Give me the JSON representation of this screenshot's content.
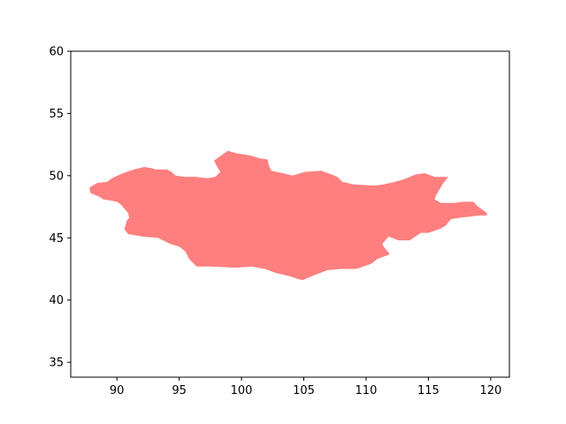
{
  "chart_data": {
    "type": "area",
    "title": "",
    "xlabel": "",
    "ylabel": "",
    "xlim": [
      86.3,
      121.5
    ],
    "ylim": [
      33.8,
      60.0
    ],
    "grid": false,
    "xticks": [
      90,
      95,
      100,
      105,
      110,
      115,
      120
    ],
    "yticks": [
      35,
      40,
      45,
      50,
      55,
      60
    ],
    "xtick_labels": [
      "90",
      "95",
      "100",
      "105",
      "110",
      "115",
      "120"
    ],
    "ytick_labels": [
      "35",
      "40",
      "45",
      "50",
      "55",
      "60"
    ],
    "series": [
      {
        "fill_color": "#ff7f7f",
        "points": [
          [
            87.9,
            49.1
          ],
          [
            88.4,
            49.4
          ],
          [
            89.2,
            49.5
          ],
          [
            89.6,
            49.8
          ],
          [
            90.5,
            50.2
          ],
          [
            91.4,
            50.5
          ],
          [
            92.2,
            50.7
          ],
          [
            92.8,
            50.6
          ],
          [
            93.1,
            50.5
          ],
          [
            94.0,
            50.5
          ],
          [
            94.4,
            50.3
          ],
          [
            94.7,
            50.0
          ],
          [
            95.5,
            49.9
          ],
          [
            96.3,
            49.9
          ],
          [
            97.3,
            49.8
          ],
          [
            97.9,
            49.9
          ],
          [
            98.3,
            50.3
          ],
          [
            98.0,
            50.8
          ],
          [
            97.8,
            51.2
          ],
          [
            98.2,
            51.5
          ],
          [
            98.9,
            52.0
          ],
          [
            99.6,
            51.8
          ],
          [
            100.8,
            51.6
          ],
          [
            101.4,
            51.4
          ],
          [
            102.1,
            51.3
          ],
          [
            102.2,
            50.8
          ],
          [
            102.4,
            50.4
          ],
          [
            103.3,
            50.2
          ],
          [
            104.1,
            50.0
          ],
          [
            105.1,
            50.3
          ],
          [
            106.4,
            50.4
          ],
          [
            107.2,
            50.1
          ],
          [
            107.7,
            49.9
          ],
          [
            108.1,
            49.5
          ],
          [
            109.0,
            49.3
          ],
          [
            110.7,
            49.2
          ],
          [
            111.4,
            49.3
          ],
          [
            112.3,
            49.5
          ],
          [
            113.0,
            49.7
          ],
          [
            114.0,
            50.1
          ],
          [
            114.7,
            50.2
          ],
          [
            115.5,
            49.9
          ],
          [
            116.6,
            49.9
          ],
          [
            116.2,
            49.4
          ],
          [
            115.6,
            48.4
          ],
          [
            115.5,
            48.1
          ],
          [
            116.0,
            47.8
          ],
          [
            117.0,
            47.8
          ],
          [
            117.8,
            47.9
          ],
          [
            118.6,
            47.9
          ],
          [
            119.0,
            47.5
          ],
          [
            119.7,
            47.0
          ],
          [
            119.7,
            46.8
          ],
          [
            119.1,
            46.8
          ],
          [
            118.3,
            46.7
          ],
          [
            117.4,
            46.6
          ],
          [
            116.8,
            46.5
          ],
          [
            116.4,
            46.0
          ],
          [
            115.9,
            45.7
          ],
          [
            115.0,
            45.4
          ],
          [
            114.4,
            45.4
          ],
          [
            113.5,
            44.8
          ],
          [
            112.6,
            44.8
          ],
          [
            111.8,
            45.1
          ],
          [
            111.3,
            44.5
          ],
          [
            111.4,
            44.3
          ],
          [
            111.9,
            43.7
          ],
          [
            111.7,
            43.6
          ],
          [
            110.9,
            43.3
          ],
          [
            110.4,
            42.9
          ],
          [
            109.2,
            42.5
          ],
          [
            107.9,
            42.5
          ],
          [
            106.9,
            42.4
          ],
          [
            105.6,
            41.9
          ],
          [
            104.9,
            41.6
          ],
          [
            104.5,
            41.7
          ],
          [
            103.9,
            41.9
          ],
          [
            102.7,
            42.2
          ],
          [
            101.9,
            42.5
          ],
          [
            100.8,
            42.7
          ],
          [
            99.5,
            42.6
          ],
          [
            97.5,
            42.7
          ],
          [
            96.4,
            42.7
          ],
          [
            95.8,
            43.3
          ],
          [
            95.5,
            43.9
          ],
          [
            95.0,
            44.3
          ],
          [
            94.3,
            44.5
          ],
          [
            93.3,
            45.0
          ],
          [
            92.1,
            45.1
          ],
          [
            90.9,
            45.3
          ],
          [
            90.6,
            45.7
          ],
          [
            90.8,
            46.4
          ],
          [
            91.0,
            46.6
          ],
          [
            90.9,
            47.0
          ],
          [
            90.3,
            47.7
          ],
          [
            90.0,
            47.9
          ],
          [
            88.9,
            48.1
          ],
          [
            88.6,
            48.3
          ],
          [
            87.9,
            48.6
          ],
          [
            87.8,
            49.0
          ]
        ]
      }
    ]
  }
}
